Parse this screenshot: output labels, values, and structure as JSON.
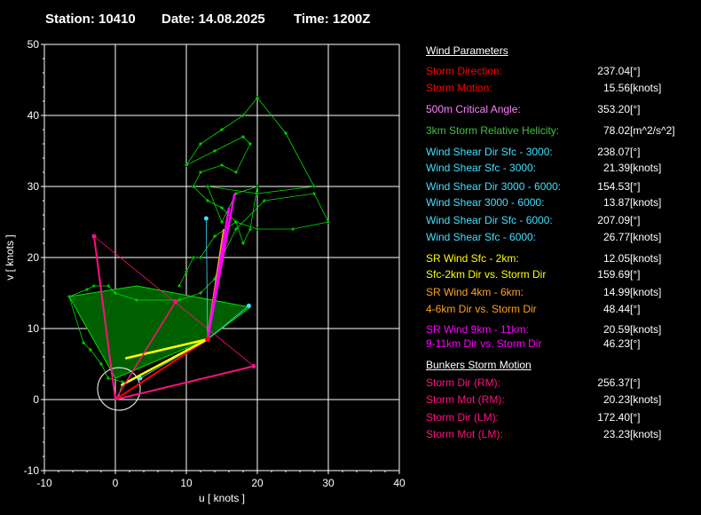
{
  "header": {
    "station": "Station: 10410",
    "date": "Date: 14.08.2025",
    "time": "Time: 1200Z"
  },
  "colors": {
    "background": "#000000",
    "grid": "#ffffff",
    "hodograph": "#00e000",
    "storm_red": "#ff0000",
    "critical": "#ff80ff",
    "srh": "#40c040",
    "shear_cyan": "#40e0ff",
    "yellow": "#ffff00",
    "orange": "#ffa020",
    "magenta": "#ff00ff",
    "bunkers": "#ff1080"
  },
  "chart_data": {
    "type": "scatter",
    "xlabel": "u  [ knots ]",
    "ylabel": "v  [ knots ]",
    "xlim": [
      -10,
      40
    ],
    "ylim": [
      -10,
      50
    ],
    "xticks": [
      "-10",
      "0",
      "10",
      "20",
      "30",
      "40"
    ],
    "yticks": [
      "-10",
      "0",
      "10",
      "20",
      "30",
      "40",
      "50"
    ],
    "grid": true,
    "hodograph": [
      [
        0.5,
        0.5
      ],
      [
        1,
        2.5
      ],
      [
        -1,
        3
      ],
      [
        -2,
        5
      ],
      [
        -3.5,
        7
      ],
      [
        -4.5,
        8
      ],
      [
        -6.5,
        14.5
      ],
      [
        -4,
        15.5
      ],
      [
        -3,
        16
      ],
      [
        -1,
        16
      ],
      [
        0,
        15
      ],
      [
        3,
        14
      ],
      [
        9,
        14
      ],
      [
        12,
        15
      ],
      [
        14,
        17
      ],
      [
        15,
        20
      ],
      [
        17,
        24
      ],
      [
        21,
        28
      ],
      [
        28,
        29
      ],
      [
        30,
        25
      ],
      [
        25,
        24
      ],
      [
        20,
        24
      ],
      [
        17,
        25
      ],
      [
        15,
        27
      ],
      [
        13,
        28
      ],
      [
        11,
        30
      ],
      [
        12,
        32
      ],
      [
        15,
        33
      ],
      [
        17,
        32
      ],
      [
        19,
        36
      ],
      [
        18,
        37
      ],
      [
        14,
        35
      ],
      [
        10,
        33
      ],
      [
        12,
        36
      ],
      [
        15,
        38
      ],
      [
        18,
        40
      ],
      [
        20,
        42.5
      ],
      [
        24,
        37.5
      ],
      [
        28,
        30
      ],
      [
        20,
        29
      ],
      [
        13,
        30
      ],
      [
        15,
        25
      ],
      [
        17,
        29
      ],
      [
        20,
        30
      ],
      [
        19,
        24
      ],
      [
        18,
        22
      ],
      [
        17,
        25
      ],
      [
        14,
        23
      ],
      [
        12,
        20
      ],
      [
        11,
        20
      ],
      [
        10,
        18
      ],
      [
        9,
        16
      ]
    ],
    "storm_motion": {
      "direction": 237.04,
      "speed": 15.56,
      "u": 13,
      "v": 8.5
    },
    "sr_levels": [
      {
        "name": "Sfc",
        "u": 0.8,
        "v": 2,
        "color": "#ffff00"
      },
      {
        "name": "2km",
        "u": 1.4,
        "v": 5.8,
        "color": "#ffff00"
      },
      {
        "name": "4km",
        "u": 15.3,
        "v": 24,
        "color": "#ffa020"
      },
      {
        "name": "6km",
        "u": 15,
        "v": 22,
        "color": "#ffa020"
      },
      {
        "name": "9km",
        "u": 16.8,
        "v": 29,
        "color": "#ff00ff"
      },
      {
        "name": "11km",
        "u": 16,
        "v": 27,
        "color": "#ff00ff"
      }
    ],
    "shear_points": [
      {
        "u": 12.8,
        "v": 25.5
      },
      {
        "u": 18.8,
        "v": 13.2
      },
      {
        "u": 3.5,
        "v": 3.0
      }
    ],
    "bunkers": {
      "rm": {
        "u": 19.5,
        "v": 4.7
      },
      "lm": {
        "u": -3.0,
        "v": 23.0
      },
      "mean": {
        "u": 8.5,
        "v": 13.8
      }
    },
    "critical_circle": {
      "u": 0.5,
      "v": 1.5,
      "r": 3
    }
  },
  "panel": {
    "title": "Wind Parameters",
    "rows": [
      {
        "label": "Storm Direction:",
        "value": "237.04",
        "unit": "[°]",
        "color": "#ff0000"
      },
      {
        "label": "Storm Motion:",
        "value": "15.56",
        "unit": "[knots]",
        "color": "#ff0000"
      },
      {
        "label": "500m Critical Angle:",
        "value": "353.20",
        "unit": "[°]",
        "color": "#ff80ff"
      },
      {
        "label": "3km Storm Relative Helicity:",
        "value": "78.02",
        "unit": "[m^2/s^2]",
        "color": "#40c040"
      },
      {
        "label": "Wind Shear Dir Sfc - 3000:",
        "value": "238.07",
        "unit": "[°]",
        "color": "#40e0ff"
      },
      {
        "label": "Wind Shear Sfc - 3000:",
        "value": "21.39",
        "unit": "[knots]",
        "color": "#40e0ff"
      },
      {
        "label": "Wind Shear Dir 3000 - 6000:",
        "value": "154.53",
        "unit": "[°]",
        "color": "#40e0ff"
      },
      {
        "label": "Wind Shear 3000 - 6000:",
        "value": "13.87",
        "unit": "[knots]",
        "color": "#40e0ff"
      },
      {
        "label": "Wind Shear Dir Sfc - 6000:",
        "value": "207.09",
        "unit": "[°]",
        "color": "#40e0ff"
      },
      {
        "label": "Wind Shear Sfc - 6000:",
        "value": "26.77",
        "unit": "[knots]",
        "color": "#40e0ff"
      },
      {
        "label": "SR Wind Sfc - 2km:",
        "value": "12.05",
        "unit": "[knots]",
        "color": "#ffff00"
      },
      {
        "label": "Sfc-2km Dir vs. Storm Dir",
        "value": "159.69",
        "unit": "[°]",
        "color": "#ffff00"
      },
      {
        "label": "SR Wind 4km - 6km:",
        "value": "14.99",
        "unit": "[knots]",
        "color": "#ffa020"
      },
      {
        "label": "4-6km Dir vs. Storm Dir",
        "value": "48.44",
        "unit": "[°]",
        "color": "#ffa020"
      },
      {
        "label": "SR Wind 9km - 11km:",
        "value": "20.59",
        "unit": "[knots]",
        "color": "#ff00ff"
      },
      {
        "label": "9-11km Dir vs. Storm Dir",
        "value": "46.23",
        "unit": "[°]",
        "color": "#ff00ff"
      }
    ],
    "bunkers_title": "Bunkers Storm Motion",
    "bunkers_rows": [
      {
        "label": "Storm Dir (RM):",
        "value": "256.37",
        "unit": "[°]",
        "color": "#ff1080"
      },
      {
        "label": "Storm Mot (RM):",
        "value": "20.23",
        "unit": "[knots]",
        "color": "#ff1080"
      },
      {
        "label": "Storm Dir (LM):",
        "value": "172.40",
        "unit": "[°]",
        "color": "#ff1080"
      },
      {
        "label": "Storm Mot (LM):",
        "value": "23.23",
        "unit": "[knots]",
        "color": "#ff1080"
      }
    ]
  }
}
